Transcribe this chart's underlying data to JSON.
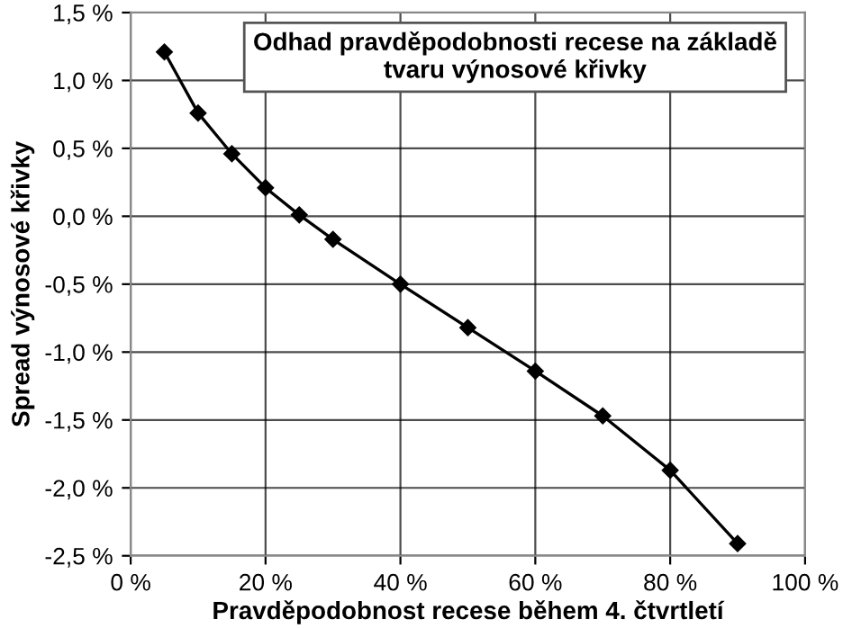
{
  "chart_data": {
    "type": "line",
    "title": "Odhad pravděpodobnosti recese na základě\ntvaru výnosové křivky",
    "xlabel": "Pravděpodobnost recese během 4. čtvrtletí",
    "ylabel": "Spread výnosové křivky",
    "x": [
      5,
      10,
      15,
      20,
      25,
      30,
      40,
      50,
      60,
      70,
      80,
      90
    ],
    "series": [
      {
        "color": "#000000",
        "values": [
          1.21,
          0.76,
          0.46,
          0.21,
          0.01,
          -0.17,
          -0.5,
          -0.82,
          -1.14,
          -1.47,
          -1.87,
          -2.41
        ]
      }
    ],
    "xlim": [
      0,
      100
    ],
    "xticks": [
      {
        "value": 0,
        "label": "0 %"
      },
      {
        "value": 20,
        "label": "20 %"
      },
      {
        "value": 40,
        "label": "40 %"
      },
      {
        "value": 60,
        "label": "60 %"
      },
      {
        "value": 80,
        "label": "80 %"
      },
      {
        "value": 100,
        "label": "100 %"
      }
    ],
    "ylim": [
      -2.5,
      1.5
    ],
    "yticks": [
      {
        "value": 1.5,
        "label": "1,5 %"
      },
      {
        "value": 1.0,
        "label": "1,0 %"
      },
      {
        "value": 0.5,
        "label": "0,5 %"
      },
      {
        "value": 0.0,
        "label": "0,0 %"
      },
      {
        "value": -0.5,
        "label": "-0,5 %"
      },
      {
        "value": -1.0,
        "label": "-1,0 %"
      },
      {
        "value": -1.5,
        "label": "-1,5 %"
      },
      {
        "value": -2.0,
        "label": "-2,0 %"
      },
      {
        "value": -2.5,
        "label": "-2,5 %"
      }
    ],
    "grid": true,
    "marker": "diamond",
    "line_style": "solid"
  }
}
